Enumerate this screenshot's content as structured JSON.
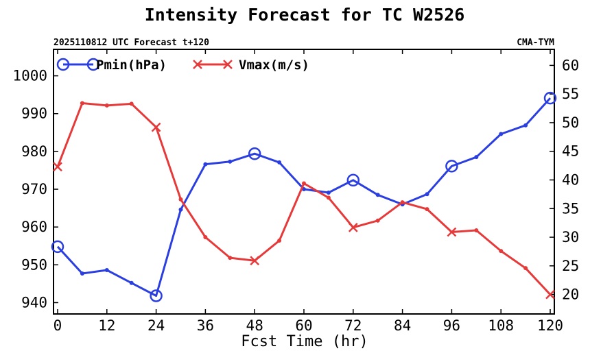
{
  "chart_data": {
    "type": "line",
    "title": "Intensity Forecast for TC W2526",
    "subtitle_left": "2025110812 UTC Forecast t+120",
    "subtitle_right": "CMA-TYM",
    "xlabel": "Fcst Time (hr)",
    "x": [
      0,
      6,
      12,
      18,
      24,
      30,
      36,
      42,
      48,
      54,
      60,
      66,
      72,
      78,
      84,
      90,
      96,
      102,
      108,
      114,
      120
    ],
    "xticks": [
      "0",
      "12",
      "24",
      "36",
      "48",
      "60",
      "72",
      "84",
      "96",
      "108",
      "120"
    ],
    "xlim": [
      -1,
      121
    ],
    "y_left": {
      "ylim": [
        937,
        1007
      ],
      "ticks": [
        "940",
        "950",
        "960",
        "970",
        "980",
        "990",
        "1000"
      ]
    },
    "y_right": {
      "ylim": [
        16.6,
        62.8
      ],
      "ticks": [
        "20",
        "25",
        "30",
        "35",
        "40",
        "45",
        "50",
        "55",
        "60"
      ]
    },
    "series": [
      {
        "name": "Pmin(hPa)",
        "axis": "left",
        "color": "#2b3fe0",
        "marker": "circle",
        "major_marker_every": 4,
        "values": [
          954.8,
          947.7,
          948.6,
          945.2,
          941.8,
          964.6,
          976.6,
          977.3,
          979.4,
          977.1,
          970.0,
          969.1,
          972.4,
          968.5,
          966.0,
          968.7,
          976.1,
          978.5,
          984.6,
          986.9,
          994.1
        ]
      },
      {
        "name": "Vmax(m/s)",
        "axis": "right",
        "color": "#e63a3a",
        "marker": "x",
        "major_marker_every": 4,
        "values": [
          42.3,
          53.4,
          53.0,
          53.3,
          49.2,
          36.6,
          30.0,
          26.4,
          25.9,
          29.4,
          39.4,
          36.9,
          31.7,
          32.9,
          36.1,
          34.9,
          30.9,
          31.2,
          27.6,
          24.6,
          20.0
        ]
      }
    ]
  }
}
